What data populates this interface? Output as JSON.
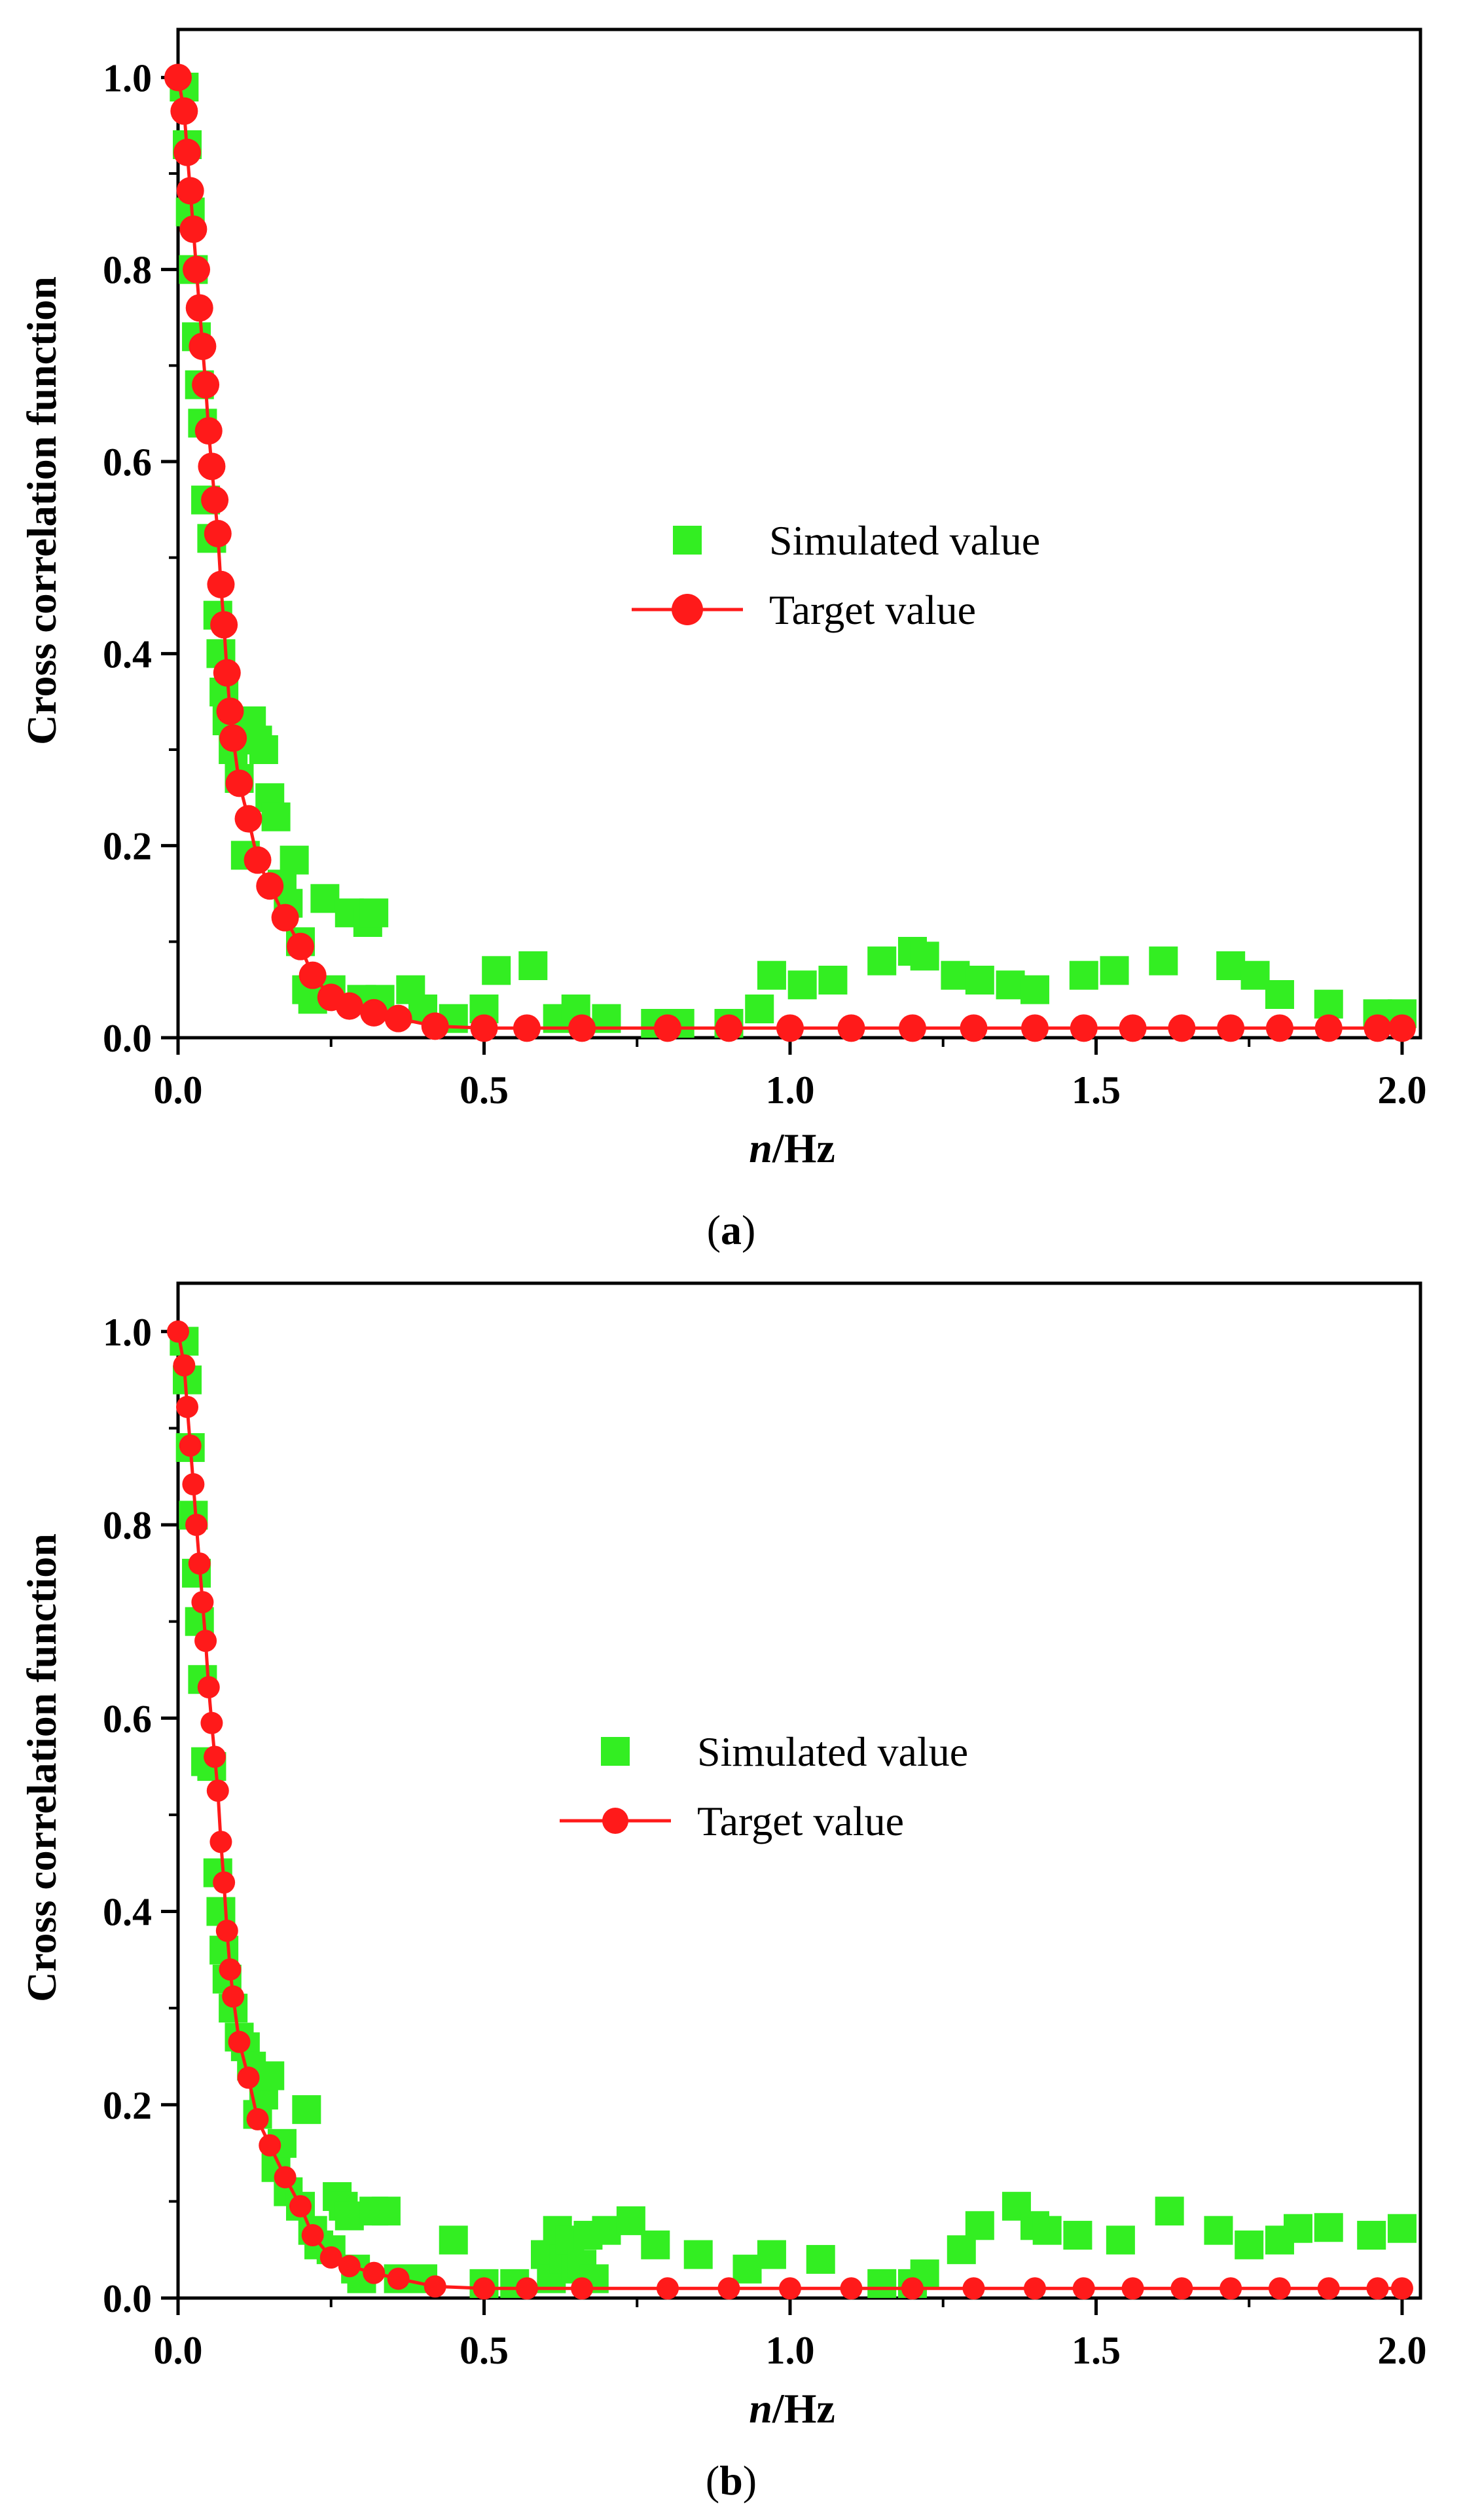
{
  "colors": {
    "simulated": "#33ee22",
    "target": "#ff1a1a",
    "axis": "#000000"
  },
  "chart_data": [
    {
      "type": "scatter",
      "panel": "a",
      "caption_letter": "a",
      "xlabel_italic": "n",
      "xlabel_unit": "/Hz",
      "ylabel": "Cross correlation function",
      "xlim": [
        0,
        2.03
      ],
      "ylim": [
        0,
        1.05
      ],
      "xticks": [
        "0.0",
        "0.5",
        "1.0",
        "1.5",
        "2.0"
      ],
      "yticks": [
        "0.0",
        "0.2",
        "0.4",
        "0.6",
        "0.8",
        "1.0"
      ],
      "legend_position": "center-right",
      "series": [
        {
          "name": "Simulated value",
          "marker": "square",
          "points": [
            [
              0.01,
              0.99
            ],
            [
              0.015,
              0.93
            ],
            [
              0.02,
              0.86
            ],
            [
              0.025,
              0.8
            ],
            [
              0.03,
              0.73
            ],
            [
              0.035,
              0.68
            ],
            [
              0.04,
              0.64
            ],
            [
              0.045,
              0.56
            ],
            [
              0.055,
              0.52
            ],
            [
              0.065,
              0.44
            ],
            [
              0.07,
              0.4
            ],
            [
              0.075,
              0.36
            ],
            [
              0.08,
              0.33
            ],
            [
              0.09,
              0.3
            ],
            [
              0.1,
              0.27
            ],
            [
              0.11,
              0.19
            ],
            [
              0.12,
              0.33
            ],
            [
              0.13,
              0.31
            ],
            [
              0.14,
              0.3
            ],
            [
              0.15,
              0.25
            ],
            [
              0.16,
              0.23
            ],
            [
              0.17,
              0.16
            ],
            [
              0.18,
              0.14
            ],
            [
              0.19,
              0.185
            ],
            [
              0.2,
              0.1
            ],
            [
              0.21,
              0.05
            ],
            [
              0.22,
              0.04
            ],
            [
              0.24,
              0.145
            ],
            [
              0.25,
              0.05
            ],
            [
              0.28,
              0.13
            ],
            [
              0.3,
              0.04
            ],
            [
              0.31,
              0.12
            ],
            [
              0.32,
              0.13
            ],
            [
              0.33,
              0.04
            ],
            [
              0.38,
              0.05
            ],
            [
              0.4,
              0.03
            ],
            [
              0.45,
              0.02
            ],
            [
              0.5,
              0.03
            ],
            [
              0.52,
              0.07
            ],
            [
              0.58,
              0.075
            ],
            [
              0.62,
              0.02
            ],
            [
              0.65,
              0.03
            ],
            [
              0.7,
              0.02
            ],
            [
              0.78,
              0.015
            ],
            [
              0.82,
              0.015
            ],
            [
              0.9,
              0.015
            ],
            [
              0.95,
              0.03
            ],
            [
              0.97,
              0.065
            ],
            [
              1.02,
              0.055
            ],
            [
              1.07,
              0.06
            ],
            [
              1.15,
              0.08
            ],
            [
              1.2,
              0.09
            ],
            [
              1.22,
              0.085
            ],
            [
              1.27,
              0.065
            ],
            [
              1.31,
              0.06
            ],
            [
              1.36,
              0.055
            ],
            [
              1.4,
              0.05
            ],
            [
              1.48,
              0.065
            ],
            [
              1.53,
              0.07
            ],
            [
              1.61,
              0.08
            ],
            [
              1.72,
              0.075
            ],
            [
              1.76,
              0.065
            ],
            [
              1.8,
              0.045
            ],
            [
              1.88,
              0.035
            ],
            [
              1.96,
              0.025
            ],
            [
              2.0,
              0.025
            ]
          ]
        },
        {
          "name": "Target value",
          "marker": "circle-line",
          "points": [
            [
              0.0,
              1.0
            ],
            [
              0.01,
              0.965
            ],
            [
              0.015,
              0.922
            ],
            [
              0.02,
              0.882
            ],
            [
              0.025,
              0.842
            ],
            [
              0.03,
              0.8
            ],
            [
              0.035,
              0.76
            ],
            [
              0.04,
              0.72
            ],
            [
              0.045,
              0.68
            ],
            [
              0.05,
              0.632
            ],
            [
              0.055,
              0.595
            ],
            [
              0.06,
              0.56
            ],
            [
              0.065,
              0.525
            ],
            [
              0.07,
              0.472
            ],
            [
              0.075,
              0.43
            ],
            [
              0.08,
              0.38
            ],
            [
              0.085,
              0.34
            ],
            [
              0.09,
              0.312
            ],
            [
              0.1,
              0.265
            ],
            [
              0.115,
              0.228
            ],
            [
              0.13,
              0.185
            ],
            [
              0.15,
              0.158
            ],
            [
              0.175,
              0.125
            ],
            [
              0.2,
              0.095
            ],
            [
              0.22,
              0.065
            ],
            [
              0.25,
              0.042
            ],
            [
              0.28,
              0.033
            ],
            [
              0.32,
              0.026
            ],
            [
              0.36,
              0.02
            ],
            [
              0.42,
              0.012
            ],
            [
              0.5,
              0.01
            ],
            [
              0.57,
              0.01
            ],
            [
              0.66,
              0.01
            ],
            [
              0.8,
              0.01
            ],
            [
              0.9,
              0.01
            ],
            [
              1.0,
              0.01
            ],
            [
              1.1,
              0.01
            ],
            [
              1.2,
              0.01
            ],
            [
              1.3,
              0.01
            ],
            [
              1.4,
              0.01
            ],
            [
              1.48,
              0.01
            ],
            [
              1.56,
              0.01
            ],
            [
              1.64,
              0.01
            ],
            [
              1.72,
              0.01
            ],
            [
              1.8,
              0.01
            ],
            [
              1.88,
              0.01
            ],
            [
              1.96,
              0.01
            ],
            [
              2.0,
              0.01
            ]
          ]
        }
      ]
    },
    {
      "type": "scatter",
      "panel": "b",
      "caption_letter": "b",
      "xlabel_italic": "n",
      "xlabel_unit": "/Hz",
      "ylabel": "Cross correlation function",
      "xlim": [
        0,
        2.03
      ],
      "ylim": [
        0,
        1.05
      ],
      "xticks": [
        "0.0",
        "0.5",
        "1.0",
        "1.5",
        "2.0"
      ],
      "yticks": [
        "0.0",
        "0.2",
        "0.4",
        "0.6",
        "0.8",
        "1.0"
      ],
      "legend_position": "center-right",
      "series": [
        {
          "name": "Simulated value",
          "marker": "square",
          "points": [
            [
              0.01,
              0.99
            ],
            [
              0.015,
              0.95
            ],
            [
              0.02,
              0.88
            ],
            [
              0.025,
              0.81
            ],
            [
              0.03,
              0.75
            ],
            [
              0.035,
              0.7
            ],
            [
              0.04,
              0.64
            ],
            [
              0.045,
              0.555
            ],
            [
              0.055,
              0.55
            ],
            [
              0.065,
              0.44
            ],
            [
              0.07,
              0.4
            ],
            [
              0.075,
              0.36
            ],
            [
              0.08,
              0.33
            ],
            [
              0.09,
              0.3
            ],
            [
              0.1,
              0.27
            ],
            [
              0.11,
              0.26
            ],
            [
              0.12,
              0.24
            ],
            [
              0.13,
              0.19
            ],
            [
              0.14,
              0.21
            ],
            [
              0.15,
              0.23
            ],
            [
              0.16,
              0.135
            ],
            [
              0.17,
              0.16
            ],
            [
              0.18,
              0.11
            ],
            [
              0.2,
              0.095
            ],
            [
              0.21,
              0.195
            ],
            [
              0.22,
              0.07
            ],
            [
              0.23,
              0.055
            ],
            [
              0.25,
              0.05
            ],
            [
              0.26,
              0.105
            ],
            [
              0.27,
              0.095
            ],
            [
              0.28,
              0.085
            ],
            [
              0.29,
              0.03
            ],
            [
              0.3,
              0.02
            ],
            [
              0.32,
              0.09
            ],
            [
              0.34,
              0.09
            ],
            [
              0.36,
              0.02
            ],
            [
              0.4,
              0.02
            ],
            [
              0.45,
              0.06
            ],
            [
              0.5,
              0.015
            ],
            [
              0.55,
              0.015
            ],
            [
              0.6,
              0.045
            ],
            [
              0.61,
              0.02
            ],
            [
              0.62,
              0.07
            ],
            [
              0.63,
              0.04
            ],
            [
              0.64,
              0.06
            ],
            [
              0.65,
              0.03
            ],
            [
              0.66,
              0.035
            ],
            [
              0.67,
              0.065
            ],
            [
              0.68,
              0.02
            ],
            [
              0.7,
              0.07
            ],
            [
              0.74,
              0.08
            ],
            [
              0.78,
              0.055
            ],
            [
              0.85,
              0.045
            ],
            [
              0.93,
              0.03
            ],
            [
              0.97,
              0.045
            ],
            [
              1.05,
              0.04
            ],
            [
              1.15,
              0.015
            ],
            [
              1.2,
              0.015
            ],
            [
              1.22,
              0.025
            ],
            [
              1.28,
              0.05
            ],
            [
              1.31,
              0.075
            ],
            [
              1.37,
              0.095
            ],
            [
              1.4,
              0.075
            ],
            [
              1.42,
              0.07
            ],
            [
              1.47,
              0.065
            ],
            [
              1.54,
              0.06
            ],
            [
              1.62,
              0.09
            ],
            [
              1.7,
              0.07
            ],
            [
              1.75,
              0.055
            ],
            [
              1.8,
              0.06
            ],
            [
              1.83,
              0.072
            ],
            [
              1.88,
              0.073
            ],
            [
              1.95,
              0.065
            ],
            [
              2.0,
              0.072
            ]
          ]
        },
        {
          "name": "Target value",
          "marker": "circle-line",
          "points": [
            [
              0.0,
              1.0
            ],
            [
              0.01,
              0.965
            ],
            [
              0.015,
              0.922
            ],
            [
              0.02,
              0.882
            ],
            [
              0.025,
              0.842
            ],
            [
              0.03,
              0.8
            ],
            [
              0.035,
              0.76
            ],
            [
              0.04,
              0.72
            ],
            [
              0.045,
              0.68
            ],
            [
              0.05,
              0.632
            ],
            [
              0.055,
              0.595
            ],
            [
              0.06,
              0.56
            ],
            [
              0.065,
              0.525
            ],
            [
              0.07,
              0.472
            ],
            [
              0.075,
              0.43
            ],
            [
              0.08,
              0.38
            ],
            [
              0.085,
              0.34
            ],
            [
              0.09,
              0.312
            ],
            [
              0.1,
              0.265
            ],
            [
              0.115,
              0.228
            ],
            [
              0.13,
              0.185
            ],
            [
              0.15,
              0.158
            ],
            [
              0.175,
              0.125
            ],
            [
              0.2,
              0.095
            ],
            [
              0.22,
              0.065
            ],
            [
              0.25,
              0.042
            ],
            [
              0.28,
              0.033
            ],
            [
              0.32,
              0.026
            ],
            [
              0.36,
              0.02
            ],
            [
              0.42,
              0.012
            ],
            [
              0.5,
              0.01
            ],
            [
              0.57,
              0.01
            ],
            [
              0.66,
              0.01
            ],
            [
              0.8,
              0.01
            ],
            [
              0.9,
              0.01
            ],
            [
              1.0,
              0.01
            ],
            [
              1.1,
              0.01
            ],
            [
              1.2,
              0.01
            ],
            [
              1.3,
              0.01
            ],
            [
              1.4,
              0.01
            ],
            [
              1.48,
              0.01
            ],
            [
              1.56,
              0.01
            ],
            [
              1.64,
              0.01
            ],
            [
              1.72,
              0.01
            ],
            [
              1.8,
              0.01
            ],
            [
              1.88,
              0.01
            ],
            [
              1.96,
              0.01
            ],
            [
              2.0,
              0.01
            ]
          ]
        }
      ]
    }
  ]
}
